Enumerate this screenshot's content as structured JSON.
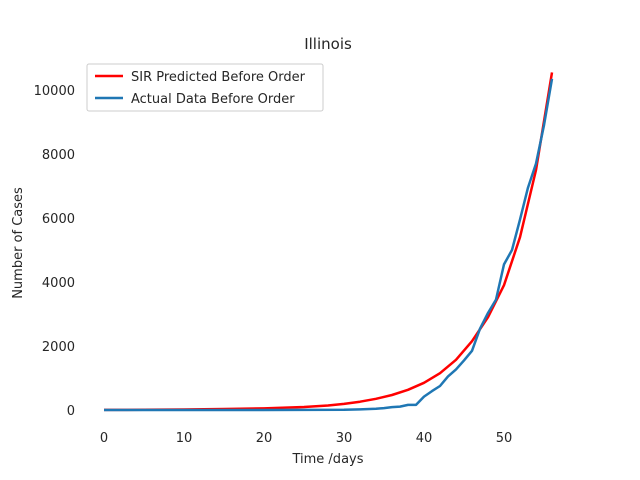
{
  "chart_data": {
    "type": "line",
    "title": "Illinois",
    "xlabel": "Time /days",
    "ylabel": "Number of Cases",
    "xlim": [
      -3,
      59
    ],
    "ylim": [
      -500,
      11000
    ],
    "xticks": [
      0,
      10,
      20,
      30,
      40,
      50
    ],
    "yticks": [
      0,
      2000,
      4000,
      6000,
      8000,
      10000
    ],
    "grid": false,
    "legend_position": "top-left",
    "series": [
      {
        "name": "SIR Predicted Before Order",
        "color": "#ff0000",
        "x": [
          0,
          5,
          10,
          15,
          20,
          25,
          28,
          30,
          32,
          34,
          36,
          38,
          40,
          42,
          44,
          46,
          48,
          50,
          52,
          54,
          56
        ],
        "y": [
          2,
          6,
          15,
          30,
          50,
          95,
          140,
          190,
          260,
          350,
          470,
          630,
          850,
          1150,
          1570,
          2150,
          2900,
          3900,
          5400,
          7500,
          10550
        ]
      },
      {
        "name": "Actual Data Before Order",
        "color": "#1f77b4",
        "x": [
          0,
          10,
          20,
          30,
          32,
          34,
          35,
          36,
          37,
          38,
          39,
          40,
          41,
          42,
          43,
          44,
          45,
          46,
          47,
          48,
          49,
          50,
          51,
          52,
          53,
          54,
          55,
          56
        ],
        "y": [
          1,
          1,
          1,
          5,
          20,
          40,
          60,
          90,
          105,
          160,
          160,
          420,
          590,
          750,
          1050,
          1270,
          1550,
          1850,
          2540,
          3030,
          3450,
          4550,
          5000,
          5950,
          6950,
          7700,
          8900,
          10350
        ]
      }
    ]
  }
}
